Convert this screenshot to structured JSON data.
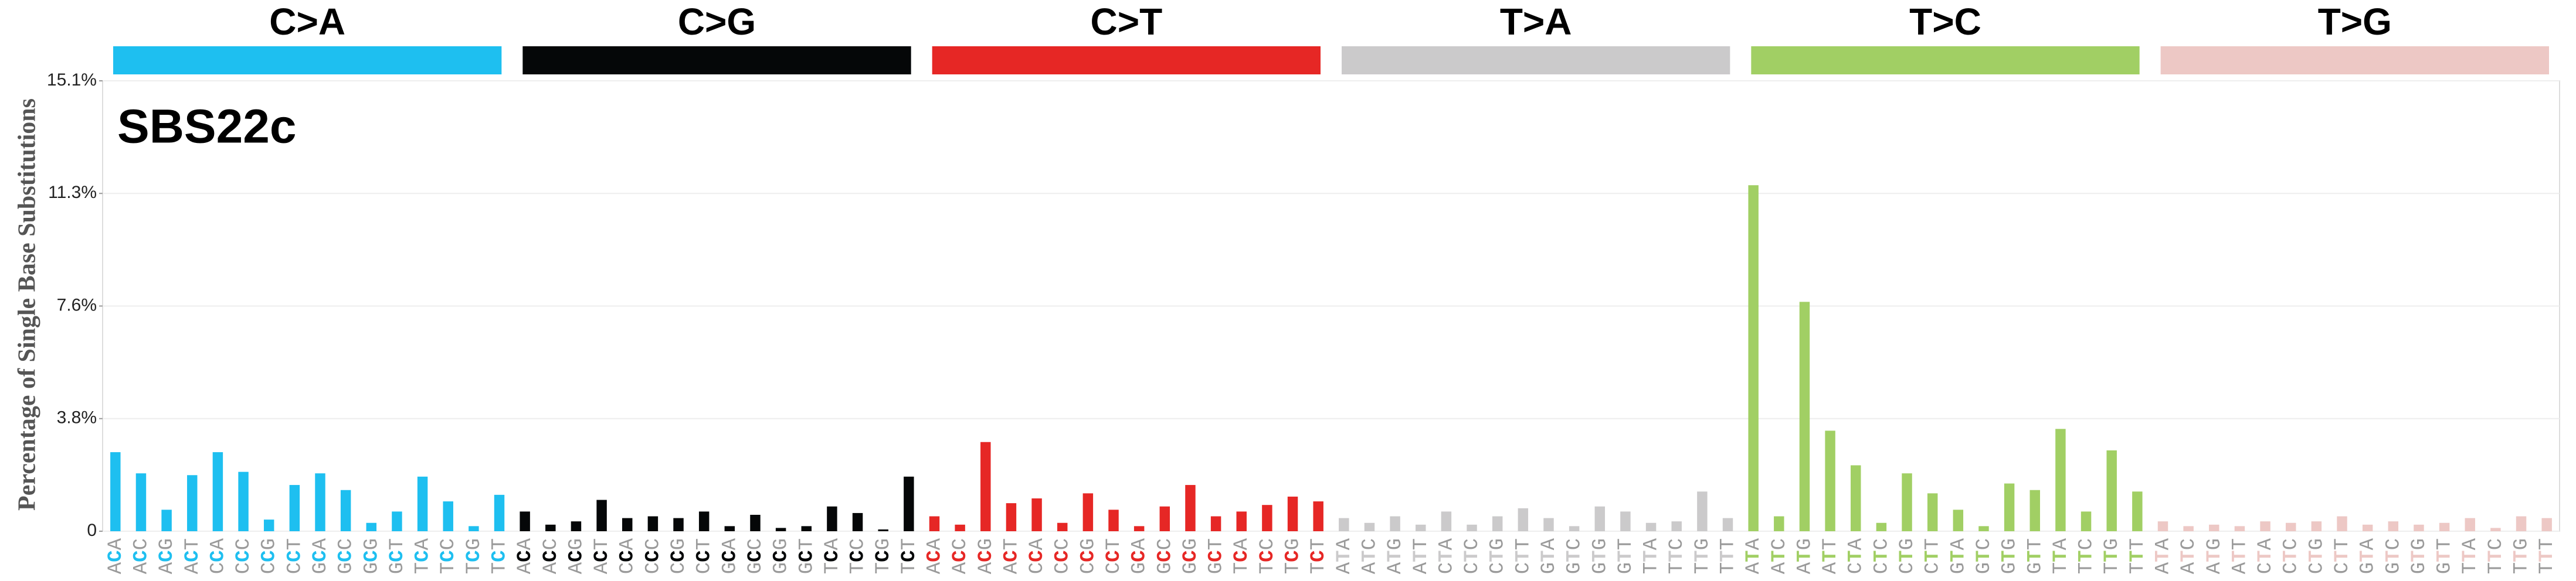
{
  "chart_data": {
    "type": "bar",
    "title": "SBS22c",
    "y_label": "Percentage of Single Base Substitutions",
    "ylim": [
      0,
      15.1
    ],
    "yticks": [
      {
        "value": 0,
        "label": "0"
      },
      {
        "value": 3.775,
        "label": "3.8%"
      },
      {
        "value": 7.55,
        "label": "7.6%"
      },
      {
        "value": 11.325,
        "label": "11.3%"
      },
      {
        "value": 15.1,
        "label": "15.1%"
      }
    ],
    "grid": true,
    "groups": [
      {
        "name": "C>A",
        "color": "#1ebff0",
        "categories": [
          "ACA",
          "ACC",
          "ACG",
          "ACT",
          "CCA",
          "CCC",
          "CCG",
          "CCT",
          "GCA",
          "GCC",
          "GCG",
          "GCT",
          "TCA",
          "TCC",
          "TCG",
          "TCT"
        ],
        "values": [
          2.65,
          1.94,
          0.72,
          1.88,
          2.65,
          1.99,
          0.39,
          1.55,
          1.94,
          1.38,
          0.28,
          0.66,
          1.83,
          1.0,
          0.17,
          1.22
        ]
      },
      {
        "name": "C>G",
        "color": "#050708",
        "categories": [
          "ACA",
          "ACC",
          "ACG",
          "ACT",
          "CCA",
          "CCC",
          "CCG",
          "CCT",
          "GCA",
          "GCC",
          "GCG",
          "GCT",
          "TCA",
          "TCC",
          "TCG",
          "TCT"
        ],
        "values": [
          0.66,
          0.22,
          0.33,
          1.05,
          0.44,
          0.5,
          0.44,
          0.66,
          0.17,
          0.55,
          0.11,
          0.17,
          0.83,
          0.61,
          0.06,
          1.83
        ]
      },
      {
        "name": "C>T",
        "color": "#e62725",
        "categories": [
          "ACA",
          "ACC",
          "ACG",
          "ACT",
          "CCA",
          "CCC",
          "CCG",
          "CCT",
          "GCA",
          "GCC",
          "GCG",
          "GCT",
          "TCA",
          "TCC",
          "TCG",
          "TCT"
        ],
        "values": [
          0.5,
          0.22,
          2.99,
          0.94,
          1.1,
          0.28,
          1.27,
          0.72,
          0.17,
          0.83,
          1.55,
          0.5,
          0.66,
          0.88,
          1.16,
          1.0
        ]
      },
      {
        "name": "T>A",
        "color": "#cbcacb",
        "categories": [
          "ATA",
          "ATC",
          "ATG",
          "ATT",
          "CTA",
          "CTC",
          "CTG",
          "CTT",
          "GTA",
          "GTC",
          "GTG",
          "GTT",
          "TTA",
          "TTC",
          "TTG",
          "TTT"
        ],
        "values": [
          0.44,
          0.28,
          0.5,
          0.22,
          0.66,
          0.22,
          0.5,
          0.77,
          0.44,
          0.17,
          0.83,
          0.66,
          0.28,
          0.33,
          1.33,
          0.44
        ]
      },
      {
        "name": "T>C",
        "color": "#a1cf64",
        "categories": [
          "ATA",
          "ATC",
          "ATG",
          "ATT",
          "CTA",
          "CTC",
          "CTG",
          "CTT",
          "GTA",
          "GTC",
          "GTG",
          "GTT",
          "TTA",
          "TTC",
          "TTG",
          "TTT"
        ],
        "values": [
          11.6,
          0.5,
          7.69,
          3.37,
          2.21,
          0.28,
          1.94,
          1.27,
          0.72,
          0.17,
          1.6,
          1.38,
          3.43,
          0.66,
          2.71,
          1.33
        ]
      },
      {
        "name": "T>G",
        "color": "#edc8c5",
        "categories": [
          "ATA",
          "ATC",
          "ATG",
          "ATT",
          "CTA",
          "CTC",
          "CTG",
          "CTT",
          "GTA",
          "GTC",
          "GTG",
          "GTT",
          "TTA",
          "TTC",
          "TTG",
          "TTT"
        ],
        "values": [
          0.33,
          0.17,
          0.22,
          0.17,
          0.33,
          0.28,
          0.33,
          0.5,
          0.22,
          0.33,
          0.22,
          0.28,
          0.44,
          0.11,
          0.5,
          0.44
        ]
      }
    ]
  }
}
